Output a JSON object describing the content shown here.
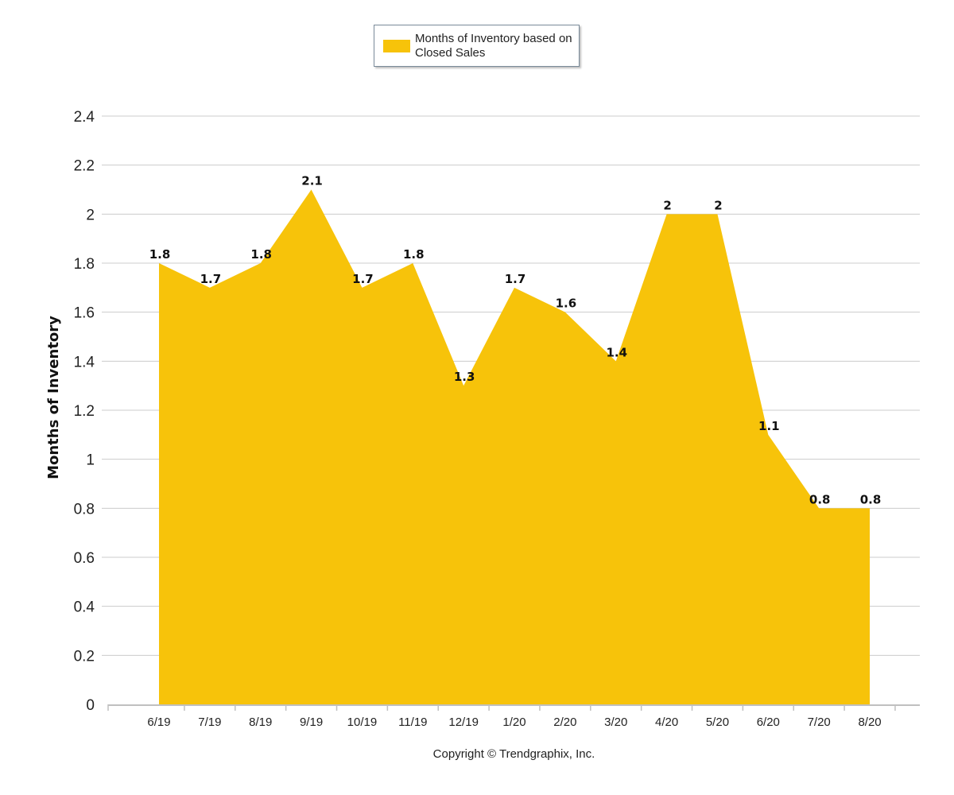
{
  "chart_data": {
    "type": "area",
    "categories": [
      "6/19",
      "7/19",
      "8/19",
      "9/19",
      "10/19",
      "11/19",
      "12/19",
      "1/20",
      "2/20",
      "3/20",
      "4/20",
      "5/20",
      "6/20",
      "7/20",
      "8/20"
    ],
    "series": [
      {
        "name": "Months of Inventory based on Closed Sales",
        "values": [
          1.8,
          1.7,
          1.8,
          2.1,
          1.7,
          1.8,
          1.3,
          1.7,
          1.6,
          1.4,
          2,
          2,
          1.1,
          0.8,
          0.8
        ],
        "color": "#f7c30a"
      }
    ],
    "ylabel": "Months of Inventory",
    "ylim": [
      0,
      2.4
    ],
    "yticks": [
      "0",
      "0.2",
      "0.4",
      "0.6",
      "0.8",
      "1",
      "1.2",
      "1.4",
      "1.6",
      "1.8",
      "2",
      "2.2",
      "2.4"
    ],
    "grid": true,
    "legend_position": "top-center",
    "data_labels": [
      "1.8",
      "1.7",
      "1.8",
      "2.1",
      "1.7",
      "1.8",
      "1.3",
      "1.7",
      "1.6",
      "1.4",
      "2",
      "2",
      "1.1",
      "0.8",
      "0.8"
    ]
  },
  "legend": {
    "label": "Months of Inventory based on Closed Sales"
  },
  "footer": {
    "copyright": "Copyright © Trendgraphix, Inc."
  },
  "colors": {
    "area": "#f7c30a",
    "grid": "#cccccc",
    "axis": "#c0c0c0"
  }
}
